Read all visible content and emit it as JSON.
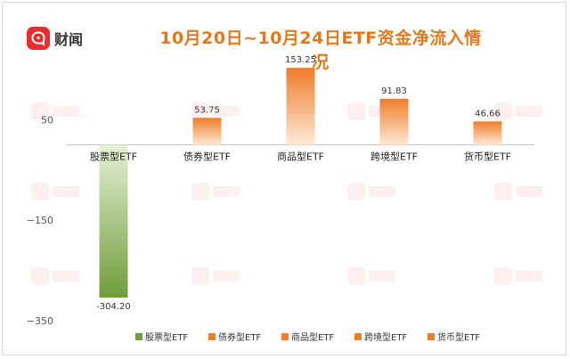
{
  "brand": {
    "name": "财闻",
    "icon": "chat-bubble-logo-icon"
  },
  "colors": {
    "brand_red": "#e62e2e",
    "title_orange": "#e07a1f",
    "stock_green_top": "#e6f0d6",
    "stock_green_bottom": "#6f9e3a",
    "orange_top": "#fde9d6",
    "orange_bottom": "#ef7d2a"
  },
  "chart_data": {
    "type": "bar",
    "title": "10月20日~10月24日ETF资金净流入情况",
    "categories": [
      "股票型ETF",
      "债券型ETF",
      "商品型ETF",
      "跨境型ETF",
      "货币型ETF"
    ],
    "values": [
      -304.2,
      53.75,
      153.25,
      91.83,
      46.66
    ],
    "value_labels": [
      "-304.20",
      "53.75",
      "153.25",
      "91.83",
      "46.66"
    ],
    "series_colors": [
      "green",
      "orange",
      "orange",
      "orange",
      "orange"
    ],
    "ylim": [
      -350,
      150
    ],
    "yticks": [
      50,
      -150,
      -350
    ],
    "ytick_labels": [
      "50",
      "−150",
      "−350"
    ],
    "grid": false,
    "legend_position": "bottom",
    "legend": [
      "股票型ETF",
      "债券型ETF",
      "商品型ETF",
      "跨境型ETF",
      "货币型ETF"
    ]
  }
}
